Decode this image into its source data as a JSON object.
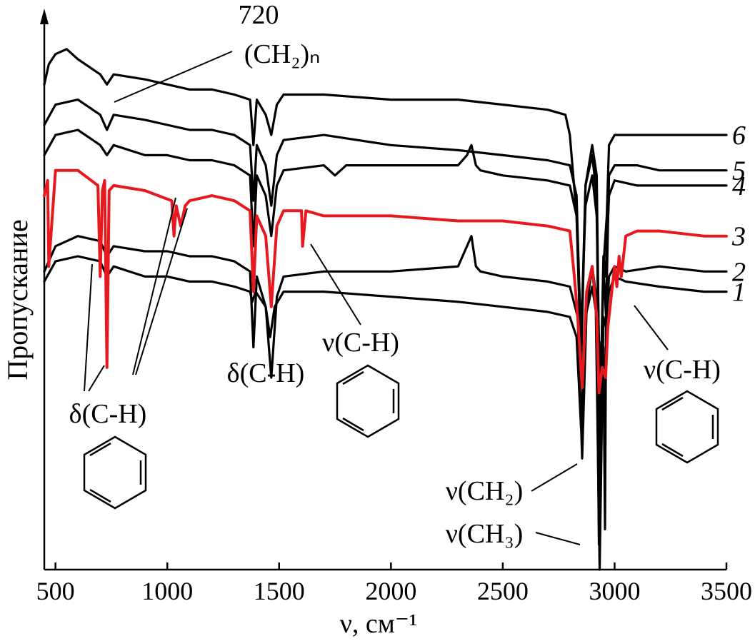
{
  "chart_data": {
    "type": "line",
    "xlabel": "ν, см⁻¹",
    "ylabel": "Пропускание",
    "xlim": [
      450,
      3500
    ],
    "xticks": [
      "500",
      "1000",
      "1500",
      "2000",
      "2500",
      "3000",
      "3500"
    ],
    "ylim": [
      0,
      100
    ],
    "yaxis_ticks": false,
    "grid": false,
    "series": [
      {
        "name": "1",
        "color": "#000000",
        "highlight": false,
        "x": [
          450,
          500,
          600,
          700,
          730,
          760,
          900,
          1000,
          1100,
          1200,
          1300,
          1370,
          1380,
          1395,
          1440,
          1460,
          1480,
          1520,
          1700,
          2000,
          2300,
          2500,
          2700,
          2800,
          2830,
          2850,
          2870,
          2900,
          2920,
          2930,
          2940,
          2950,
          2957,
          2962,
          2975,
          3000,
          3050,
          3200,
          3400,
          3500
        ],
        "y": [
          57,
          61,
          62,
          61,
          58,
          60,
          58,
          58,
          57,
          57,
          56,
          55,
          53,
          55,
          52,
          46,
          52,
          55,
          55,
          54,
          53,
          52,
          51,
          50,
          46,
          28,
          50,
          56,
          50,
          5,
          45,
          44,
          8,
          50,
          55,
          58,
          57,
          56,
          55,
          55
        ]
      },
      {
        "name": "2",
        "color": "#000000",
        "highlight": false,
        "x": [
          450,
          500,
          600,
          700,
          730,
          760,
          900,
          1000,
          1100,
          1200,
          1300,
          1370,
          1385,
          1400,
          1440,
          1465,
          1490,
          1520,
          1700,
          2000,
          2300,
          2340,
          2360,
          2380,
          2400,
          2500,
          2700,
          2800,
          2835,
          2855,
          2875,
          2900,
          2915,
          2933,
          2950,
          2962,
          2975,
          3000,
          3050,
          3200,
          3400,
          3500
        ],
        "y": [
          59,
          64,
          66,
          65,
          62,
          64,
          63,
          63,
          62,
          62,
          61,
          59,
          44,
          58,
          52,
          38,
          54,
          58,
          59,
          59,
          60,
          64,
          66,
          60,
          59,
          58,
          57,
          56,
          50,
          22,
          52,
          60,
          55,
          0,
          50,
          48,
          58,
          60,
          59,
          60,
          59,
          59
        ]
      },
      {
        "name": "3",
        "color": "#e8191e",
        "highlight": true,
        "x": [
          450,
          465,
          470,
          500,
          600,
          690,
          700,
          710,
          720,
          730,
          740,
          760,
          900,
          1020,
          1030,
          1040,
          1060,
          1080,
          1100,
          1200,
          1300,
          1370,
          1385,
          1400,
          1440,
          1465,
          1490,
          1520,
          1600,
          1605,
          1620,
          1700,
          2000,
          2300,
          2500,
          2700,
          2800,
          2820,
          2835,
          2855,
          2875,
          2900,
          2920,
          2930,
          2945,
          2960,
          2970,
          3000,
          3010,
          3020,
          3030,
          3050,
          3100,
          3200,
          3400,
          3500
        ],
        "y": [
          74,
          77,
          60,
          79,
          79,
          76,
          58,
          75,
          77,
          40,
          75,
          76,
          75,
          73,
          66,
          72,
          68,
          72,
          73,
          74,
          73,
          71,
          55,
          70,
          66,
          52,
          68,
          71,
          71,
          64,
          71,
          70,
          70,
          69,
          69,
          68,
          67,
          58,
          50,
          36,
          55,
          60,
          50,
          35,
          40,
          38,
          48,
          60,
          56,
          62,
          58,
          66,
          67,
          67,
          66,
          66
        ]
      },
      {
        "name": "4",
        "color": "#000000",
        "highlight": false,
        "x": [
          450,
          500,
          600,
          700,
          730,
          760,
          900,
          1000,
          1100,
          1200,
          1300,
          1370,
          1385,
          1400,
          1440,
          1465,
          1490,
          1520,
          1700,
          1750,
          1800,
          2000,
          2300,
          2340,
          2360,
          2380,
          2400,
          2500,
          2700,
          2800,
          2830,
          2850,
          2870,
          2900,
          2920,
          2935,
          2950,
          2960,
          2975,
          3000,
          3100,
          3200,
          3400,
          3500
        ],
        "y": [
          82,
          86,
          87,
          84,
          82,
          84,
          82,
          82,
          81,
          81,
          80,
          78,
          64,
          78,
          74,
          66,
          76,
          79,
          80,
          78,
          80,
          80,
          80,
          82,
          84,
          80,
          79,
          78,
          77,
          76,
          70,
          46,
          72,
          78,
          70,
          30,
          62,
          58,
          74,
          77,
          76,
          76,
          76,
          76
        ]
      },
      {
        "name": "5",
        "color": "#000000",
        "highlight": false,
        "x": [
          450,
          500,
          600,
          700,
          730,
          760,
          900,
          1000,
          1100,
          1200,
          1300,
          1370,
          1385,
          1400,
          1440,
          1465,
          1490,
          1520,
          1700,
          2000,
          2300,
          2500,
          2700,
          2800,
          2830,
          2850,
          2870,
          2900,
          2920,
          2932,
          2950,
          2962,
          2975,
          3000,
          3100,
          3200,
          3400,
          3500
        ],
        "y": [
          88,
          92,
          93,
          90,
          87,
          90,
          89,
          88,
          87,
          87,
          86,
          84,
          73,
          84,
          80,
          72,
          82,
          85,
          86,
          84,
          83,
          82,
          81,
          80,
          74,
          44,
          76,
          82,
          74,
          25,
          60,
          50,
          78,
          80,
          80,
          79,
          79,
          79
        ]
      },
      {
        "name": "6",
        "color": "#000000",
        "highlight": false,
        "x": [
          450,
          470,
          500,
          550,
          600,
          700,
          730,
          760,
          900,
          1000,
          1100,
          1200,
          1300,
          1370,
          1385,
          1400,
          1440,
          1465,
          1490,
          1520,
          1700,
          2000,
          2300,
          2500,
          2700,
          2780,
          2800,
          2830,
          2850,
          2870,
          2900,
          2920,
          2935,
          2950,
          2965,
          2975,
          3000,
          3100,
          3200,
          3400,
          3500
        ],
        "y": [
          96,
          100,
          102,
          103,
          101,
          98,
          96,
          98,
          97,
          96,
          95,
          95,
          94,
          93,
          84,
          93,
          90,
          86,
          92,
          94,
          94,
          93,
          93,
          92,
          91,
          90,
          86,
          70,
          40,
          76,
          84,
          78,
          25,
          60,
          70,
          84,
          86,
          86,
          86,
          86,
          86
        ]
      }
    ],
    "annotations": {
      "ch2_rock_value": "720",
      "ch2_rock_group": "(CH₂)ₙ",
      "arom_bend_low": "δ(C-H)",
      "bend_1460": "δ(C-H)",
      "arom_stretch_1600": "ν(C-H)",
      "arom_stretch_3030": "ν(C-H)",
      "ch2_stretch": "ν(CH₂)",
      "ch3_stretch": "ν(CH₃)"
    }
  }
}
